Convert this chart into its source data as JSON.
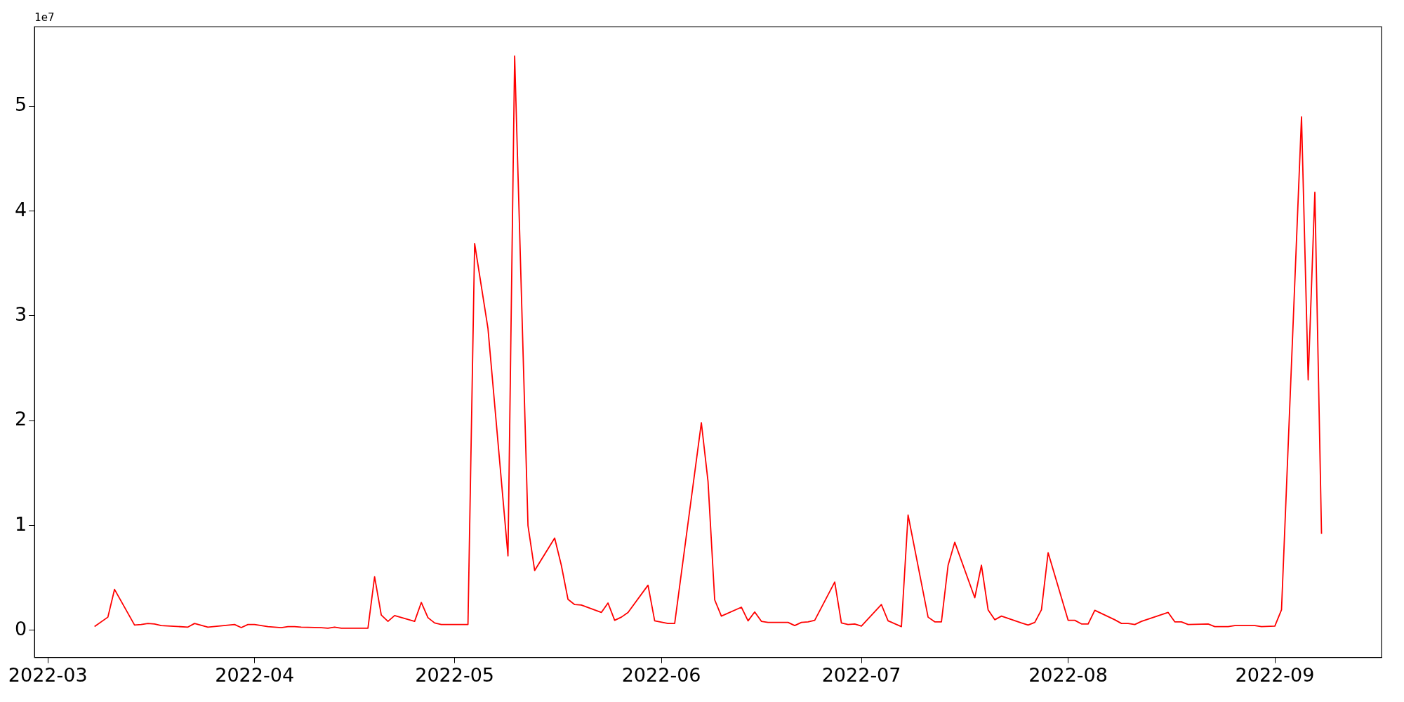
{
  "chart_data": {
    "type": "line",
    "x": [
      "2022-03-08",
      "2022-03-10",
      "2022-03-11",
      "2022-03-14",
      "2022-03-15",
      "2022-03-16",
      "2022-03-17",
      "2022-03-18",
      "2022-03-22",
      "2022-03-23",
      "2022-03-25",
      "2022-03-29",
      "2022-03-30",
      "2022-03-31",
      "2022-04-01",
      "2022-04-03",
      "2022-04-05",
      "2022-04-06",
      "2022-04-07",
      "2022-04-08",
      "2022-04-11",
      "2022-04-12",
      "2022-04-13",
      "2022-04-14",
      "2022-04-15",
      "2022-04-18",
      "2022-04-19",
      "2022-04-20",
      "2022-04-21",
      "2022-04-22",
      "2022-04-25",
      "2022-04-26",
      "2022-04-27",
      "2022-04-28",
      "2022-04-29",
      "2022-05-03",
      "2022-05-04",
      "2022-05-06",
      "2022-05-09",
      "2022-05-10",
      "2022-05-12",
      "2022-05-13",
      "2022-05-16",
      "2022-05-17",
      "2022-05-18",
      "2022-05-19",
      "2022-05-20",
      "2022-05-23",
      "2022-05-24",
      "2022-05-25",
      "2022-05-26",
      "2022-05-27",
      "2022-05-30",
      "2022-05-31",
      "2022-06-02",
      "2022-06-03",
      "2022-06-07",
      "2022-06-08",
      "2022-06-09",
      "2022-06-10",
      "2022-06-13",
      "2022-06-14",
      "2022-06-15",
      "2022-06-16",
      "2022-06-17",
      "2022-06-20",
      "2022-06-21",
      "2022-06-22",
      "2022-06-23",
      "2022-06-24",
      "2022-06-27",
      "2022-06-28",
      "2022-06-29",
      "2022-06-30",
      "2022-07-01",
      "2022-07-04",
      "2022-07-05",
      "2022-07-07",
      "2022-07-08",
      "2022-07-11",
      "2022-07-12",
      "2022-07-13",
      "2022-07-14",
      "2022-07-15",
      "2022-07-18",
      "2022-07-19",
      "2022-07-20",
      "2022-07-21",
      "2022-07-22",
      "2022-07-25",
      "2022-07-26",
      "2022-07-27",
      "2022-07-28",
      "2022-07-29",
      "2022-08-01",
      "2022-08-02",
      "2022-08-03",
      "2022-08-04",
      "2022-08-05",
      "2022-08-08",
      "2022-08-09",
      "2022-08-10",
      "2022-08-11",
      "2022-08-12",
      "2022-08-16",
      "2022-08-17",
      "2022-08-18",
      "2022-08-19",
      "2022-08-22",
      "2022-08-23",
      "2022-08-24",
      "2022-08-25",
      "2022-08-26",
      "2022-08-29",
      "2022-08-30",
      "2022-09-01",
      "2022-09-02",
      "2022-09-05",
      "2022-09-06",
      "2022-09-07",
      "2022-09-08"
    ],
    "series": [
      {
        "color": "#ff0000",
        "values": [
          0.035,
          0.125,
          0.39,
          0.05,
          0.055,
          0.065,
          0.06,
          0.045,
          0.03,
          0.065,
          0.03,
          0.055,
          0.025,
          0.055,
          0.055,
          0.035,
          0.025,
          0.035,
          0.035,
          0.03,
          0.025,
          0.02,
          0.03,
          0.02,
          0.02,
          0.02,
          0.51,
          0.145,
          0.085,
          0.14,
          0.085,
          0.265,
          0.12,
          0.07,
          0.055,
          0.055,
          3.69,
          2.88,
          0.71,
          5.48,
          1.0,
          0.57,
          0.88,
          0.62,
          0.295,
          0.245,
          0.24,
          0.17,
          0.26,
          0.095,
          0.125,
          0.17,
          0.43,
          0.09,
          0.065,
          0.065,
          1.98,
          1.42,
          0.29,
          0.135,
          0.22,
          0.09,
          0.175,
          0.085,
          0.075,
          0.075,
          0.045,
          0.075,
          0.08,
          0.095,
          0.46,
          0.07,
          0.055,
          0.06,
          0.04,
          0.245,
          0.09,
          0.035,
          1.1,
          0.125,
          0.08,
          0.08,
          0.62,
          0.84,
          0.31,
          0.62,
          0.195,
          0.1,
          0.135,
          0.07,
          0.05,
          0.075,
          0.195,
          0.74,
          0.095,
          0.095,
          0.06,
          0.06,
          0.19,
          0.1,
          0.065,
          0.065,
          0.055,
          0.085,
          0.17,
          0.08,
          0.08,
          0.055,
          0.06,
          0.035,
          0.035,
          0.035,
          0.045,
          0.045,
          0.035,
          0.04,
          0.195,
          4.9,
          2.39,
          4.18,
          0.92
        ]
      }
    ],
    "xlim": [
      "2022-02-27",
      "2022-09-17"
    ],
    "xticks": [
      {
        "value": "2022-03-01",
        "label": "2022-03"
      },
      {
        "value": "2022-04-01",
        "label": "2022-04"
      },
      {
        "value": "2022-05-01",
        "label": "2022-05"
      },
      {
        "value": "2022-06-01",
        "label": "2022-06"
      },
      {
        "value": "2022-07-01",
        "label": "2022-07"
      },
      {
        "value": "2022-08-01",
        "label": "2022-08"
      },
      {
        "value": "2022-09-01",
        "label": "2022-09"
      }
    ],
    "ylim": [
      -0.26,
      5.76
    ],
    "yticks": [
      0,
      1,
      2,
      3,
      4,
      5
    ],
    "annotations": [
      "1e7"
    ],
    "grid": false,
    "legend": false,
    "marker": "none",
    "line_style": "solid"
  }
}
